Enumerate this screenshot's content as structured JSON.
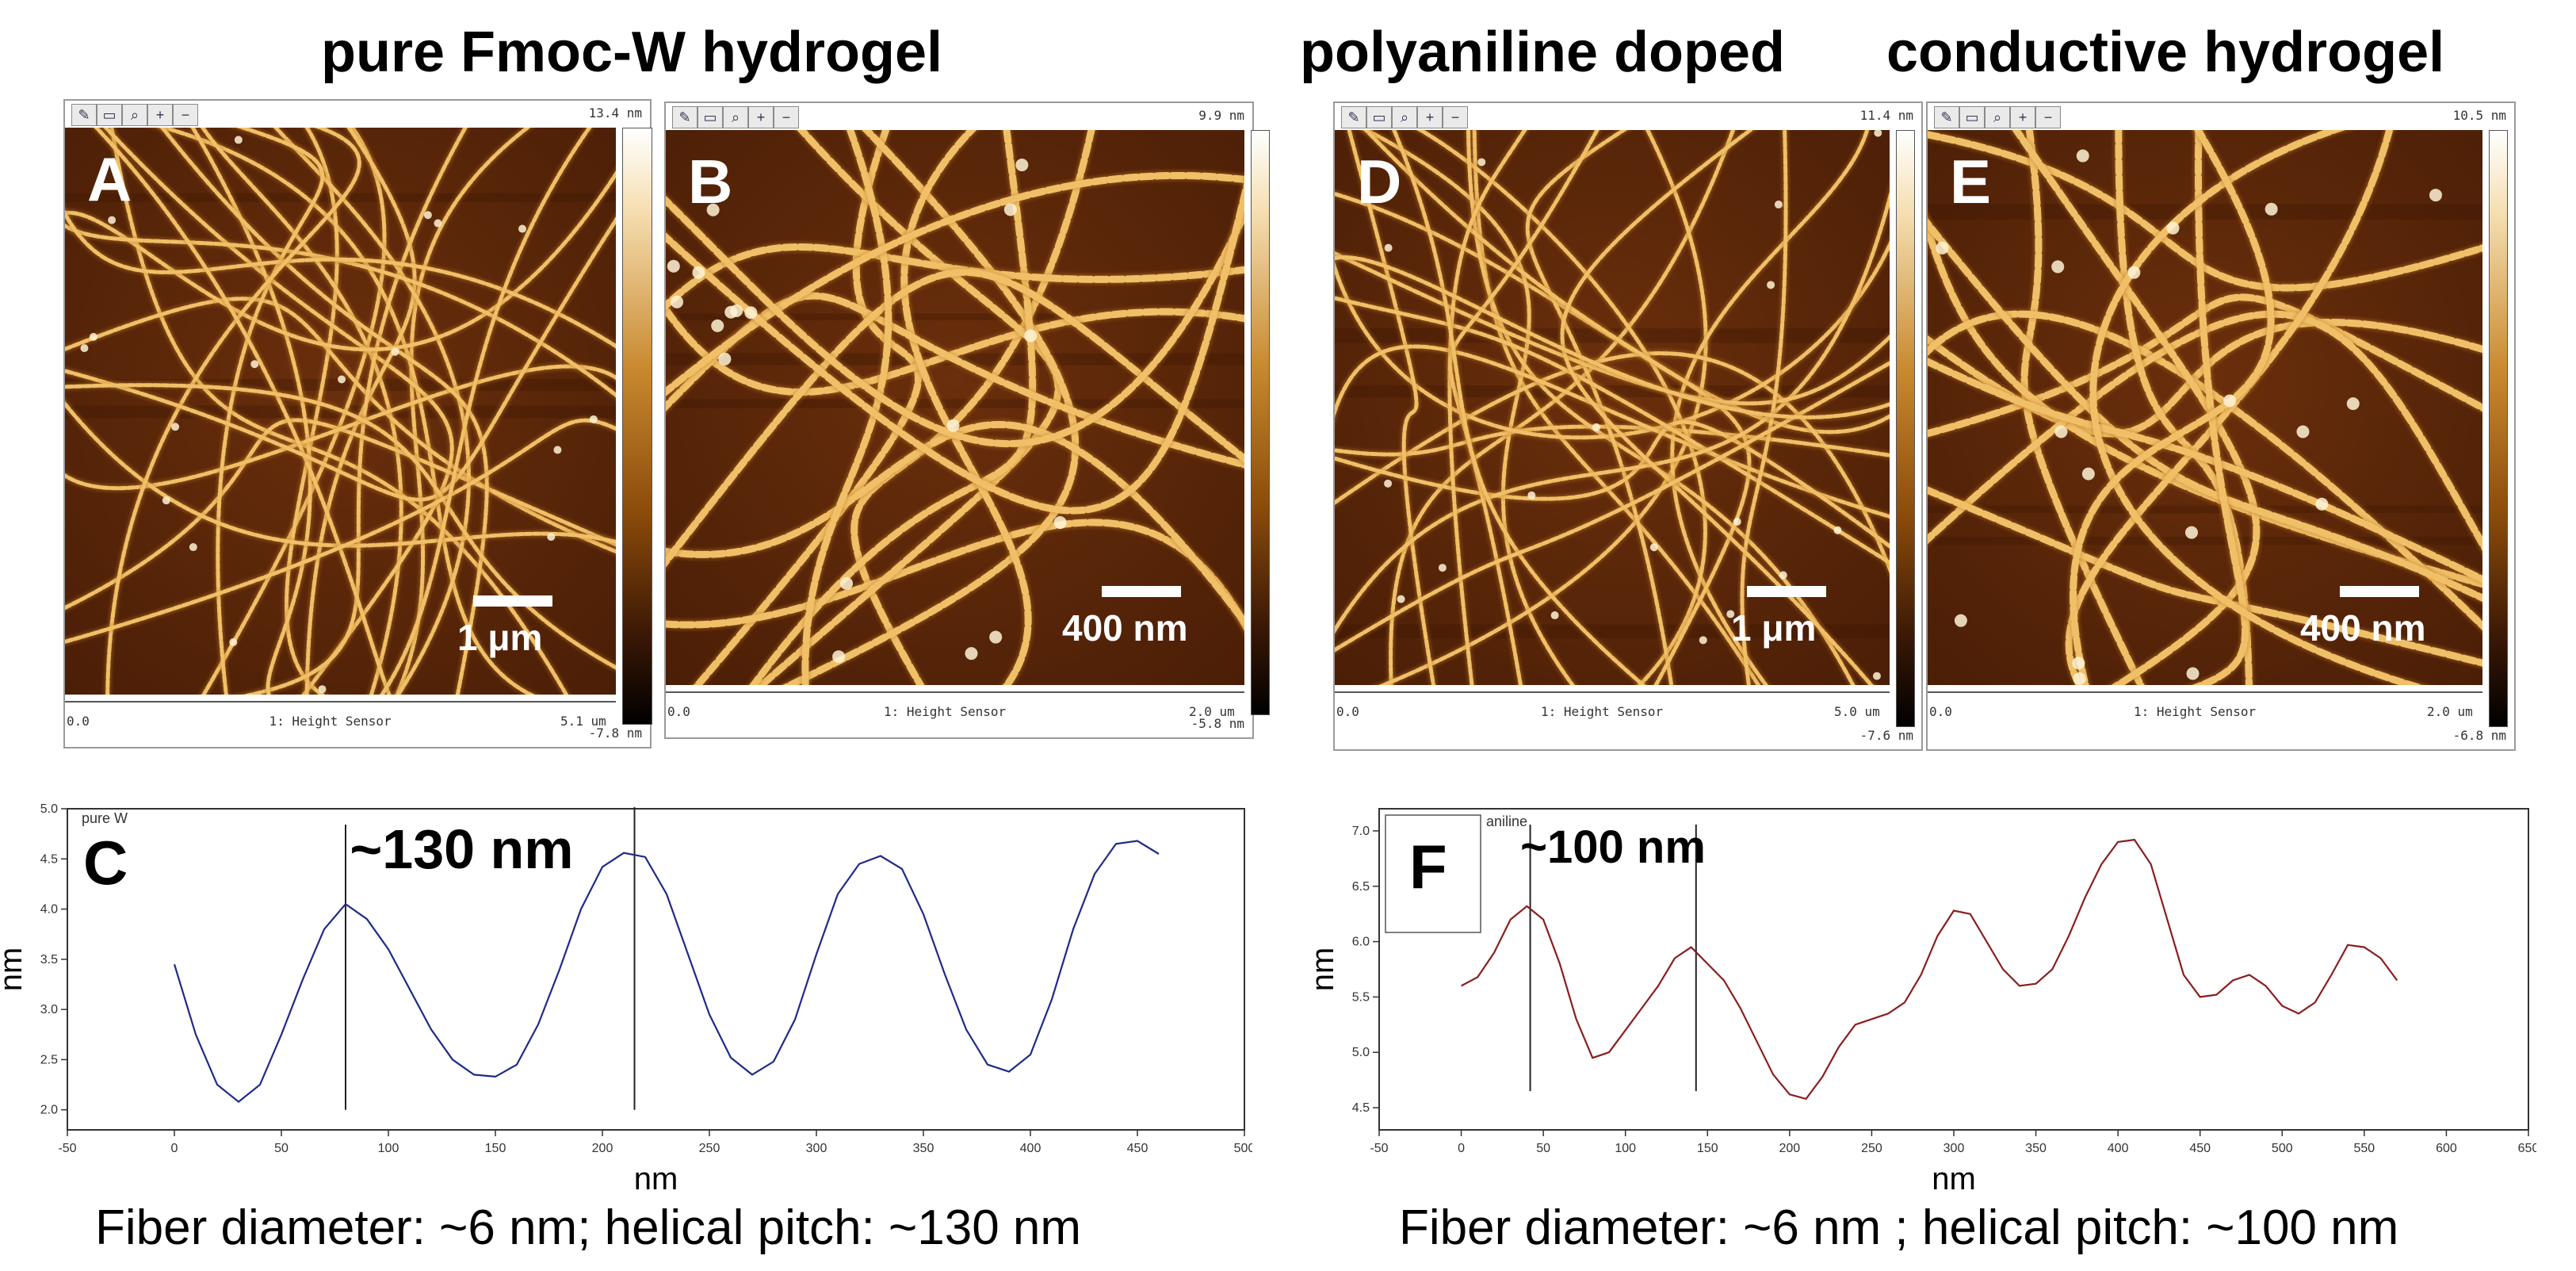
{
  "headings": {
    "left": "pure Fmoc-W hydrogel",
    "right_a": "polyaniline doped",
    "right_b": "conductive hydrogel"
  },
  "afm_panels": [
    {
      "letter": "A",
      "max_value": "13.4 nm",
      "min_value": "-7.8 nm",
      "axis_start": "0.0",
      "axis_end": "5.1 um",
      "channel": "1: Height Sensor",
      "scale_bar": "1 μm"
    },
    {
      "letter": "B",
      "max_value": "9.9 nm",
      "min_value": "-5.8 nm",
      "axis_start": "0.0",
      "axis_end": "2.0 um",
      "channel": "1: Height Sensor",
      "scale_bar": "400 nm"
    },
    {
      "letter": "D",
      "max_value": "11.4 nm",
      "min_value": "-7.6 nm",
      "axis_start": "0.0",
      "axis_end": "5.0 um",
      "channel": "1: Height Sensor",
      "scale_bar": "1 μm"
    },
    {
      "letter": "E",
      "max_value": "10.5 nm",
      "min_value": "-6.8 nm",
      "axis_start": "0.0",
      "axis_end": "2.0 um",
      "channel": "1: Height Sensor",
      "scale_bar": "400 nm"
    }
  ],
  "toolbar_icons": [
    "pencil-icon",
    "note-icon",
    "zoom-icon",
    "zoom-in-icon",
    "zoom-out-icon"
  ],
  "captions": {
    "left": "Fiber diameter: ~6 nm; helical pitch: ~130 nm",
    "right": "Fiber diameter: ~6 nm ; helical pitch: ~100 nm"
  },
  "chart_data": [
    {
      "type": "line",
      "panel_letter": "C",
      "legend_text": "pure W",
      "annotation": "~130 nm",
      "xlabel": "nm",
      "ylabel": "nm",
      "xlim": [
        -50,
        500
      ],
      "ylim": [
        1.8,
        5.0
      ],
      "xticks": [
        -50,
        0,
        50,
        100,
        150,
        200,
        250,
        300,
        350,
        400,
        450,
        500
      ],
      "yticks": [
        2.0,
        2.5,
        3.0,
        3.5,
        4.0,
        4.5,
        5.0
      ],
      "ytick_decimals": 1,
      "marker_lines": [
        80,
        215
      ],
      "line_color": "#1f2a8a",
      "series": [
        {
          "x": [
            0,
            10,
            20,
            30,
            40,
            50,
            60,
            70,
            80,
            90,
            100,
            110,
            120,
            130,
            140,
            150,
            160,
            170,
            180,
            190,
            200,
            210,
            220,
            230,
            240,
            250,
            260,
            270,
            280,
            290,
            300,
            310,
            320,
            330,
            340,
            350,
            360,
            370,
            380,
            390,
            400,
            410,
            420,
            430,
            440,
            450,
            460
          ],
          "y": [
            3.45,
            2.75,
            2.25,
            2.08,
            2.25,
            2.75,
            3.3,
            3.8,
            4.05,
            3.9,
            3.6,
            3.2,
            2.8,
            2.5,
            2.35,
            2.33,
            2.45,
            2.85,
            3.4,
            4.0,
            4.42,
            4.56,
            4.52,
            4.15,
            3.55,
            2.95,
            2.52,
            2.35,
            2.48,
            2.9,
            3.55,
            4.15,
            4.45,
            4.53,
            4.4,
            3.95,
            3.35,
            2.8,
            2.45,
            2.38,
            2.55,
            3.1,
            3.8,
            4.35,
            4.65,
            4.68,
            4.55
          ]
        }
      ]
    },
    {
      "type": "line",
      "panel_letter": "F",
      "legend_text": "aniline",
      "annotation": "~100 nm",
      "xlabel": "nm",
      "ylabel": "nm",
      "xlim": [
        -50,
        650
      ],
      "ylim": [
        4.3,
        7.2
      ],
      "xticks": [
        -50,
        0,
        50,
        100,
        150,
        200,
        250,
        300,
        350,
        400,
        450,
        500,
        550,
        600,
        650
      ],
      "yticks": [
        4.5,
        5.0,
        5.5,
        6.0,
        6.5,
        7.0
      ],
      "ytick_decimals": 1,
      "marker_lines": [
        42,
        143
      ],
      "line_color": "#8a1e1e",
      "series": [
        {
          "x": [
            0,
            10,
            20,
            30,
            40,
            50,
            60,
            70,
            80,
            90,
            100,
            110,
            120,
            130,
            140,
            150,
            160,
            170,
            180,
            190,
            200,
            210,
            220,
            230,
            240,
            250,
            260,
            270,
            280,
            290,
            300,
            310,
            320,
            330,
            340,
            350,
            360,
            370,
            380,
            390,
            400,
            410,
            420,
            430,
            440,
            450,
            460,
            470,
            480,
            490,
            500,
            510,
            520,
            530,
            540,
            550,
            560,
            570
          ],
          "y": [
            5.6,
            5.68,
            5.9,
            6.2,
            6.32,
            6.2,
            5.8,
            5.3,
            4.95,
            5.0,
            5.2,
            5.4,
            5.6,
            5.85,
            5.95,
            5.8,
            5.65,
            5.4,
            5.1,
            4.8,
            4.62,
            4.58,
            4.78,
            5.05,
            5.25,
            5.3,
            5.35,
            5.45,
            5.7,
            6.05,
            6.28,
            6.25,
            6.0,
            5.75,
            5.6,
            5.62,
            5.75,
            6.05,
            6.4,
            6.7,
            6.9,
            6.92,
            6.7,
            6.2,
            5.7,
            5.5,
            5.52,
            5.65,
            5.7,
            5.6,
            5.42,
            5.35,
            5.45,
            5.7,
            5.97,
            5.95,
            5.85,
            5.65
          ]
        }
      ]
    }
  ]
}
